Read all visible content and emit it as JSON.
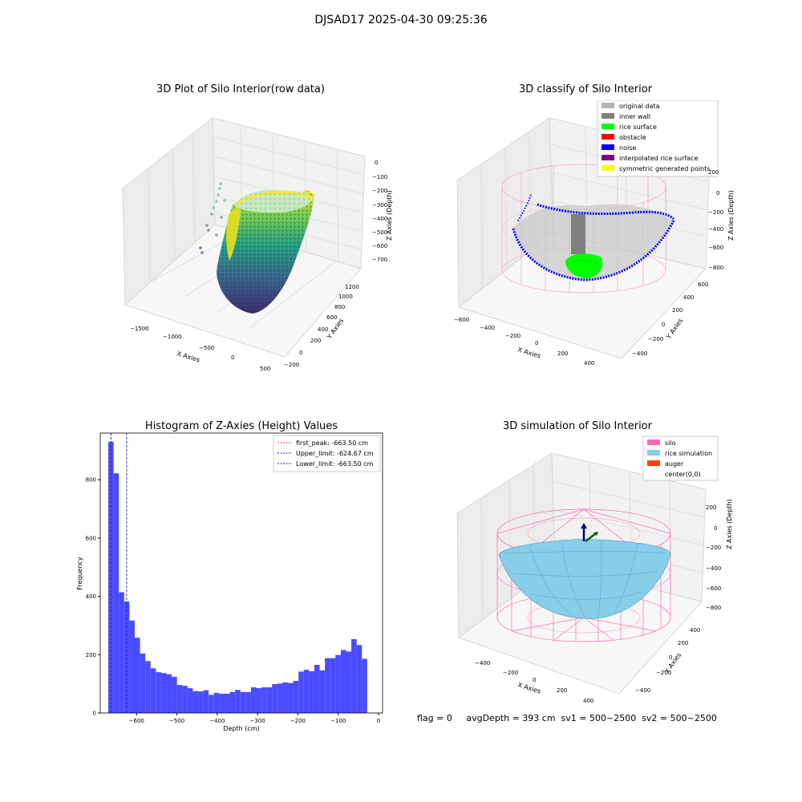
{
  "figure": {
    "suptitle": "DJSAD17 2025-04-30 09:25:36"
  },
  "colors": {
    "histogram": "#4b4bff",
    "first_peak": "#e03030",
    "limits": "#2020cc",
    "silo": "#ff69b4",
    "rice_sim": "#87ceeb",
    "auger": "#ff4500",
    "inner_wall": "#808080",
    "rice_surface": "#00ff00",
    "noise": "#0000ff"
  },
  "chart_data": [
    {
      "type": "scatter",
      "title": "3D Plot of Silo Interior(row data)",
      "xlabel": "X Axies",
      "ylabel": "Y Axies",
      "zlabel": "Z Axies (Depth)",
      "x_ticks": [
        "−1500",
        "−1000",
        "−500",
        "0",
        "500"
      ],
      "y_ticks": [
        "−200",
        "0",
        "200",
        "400",
        "600",
        "800",
        "1000",
        "1200"
      ],
      "z_ticks": [
        "0",
        "−100",
        "−200",
        "−300",
        "−400",
        "−500",
        "−600",
        "−700"
      ],
      "colormap": "viridis"
    },
    {
      "type": "scatter",
      "title": "3D classify of Silo Interior",
      "xlabel": "X Axies",
      "ylabel": "Y Axies",
      "zlabel": "Z Axies (Depth)",
      "x_ticks": [
        "−600",
        "−400",
        "−200",
        "0",
        "200",
        "400"
      ],
      "y_ticks": [
        "−400",
        "−200",
        "0",
        "200",
        "400",
        "600"
      ],
      "z_ticks": [
        "200",
        "0",
        "−200",
        "−400",
        "−600",
        "−800"
      ],
      "legend": [
        {
          "label": "original data",
          "color": "#b4b4b4"
        },
        {
          "label": "inner wall",
          "color": "#808080"
        },
        {
          "label": "rice surface",
          "color": "#00ff00"
        },
        {
          "label": "obstacle",
          "color": "#ff0000"
        },
        {
          "label": "noise",
          "color": "#0000ff"
        },
        {
          "label": "interpolated rice surface",
          "color": "#800080"
        },
        {
          "label": "symmetric generated points",
          "color": "#ffff00"
        }
      ]
    },
    {
      "type": "bar",
      "title": "Histogram of Z-Axies (Height) Values",
      "xlabel": "Depth (cm)",
      "ylabel": "Frequency",
      "xlim": [
        -690,
        10
      ],
      "ylim": [
        0,
        960
      ],
      "x_ticks": [
        -600,
        -500,
        -400,
        -300,
        -200,
        -100,
        0
      ],
      "y_ticks": [
        0,
        200,
        400,
        600,
        800
      ],
      "bin_start": -670,
      "bin_width": 13.1,
      "values": [
        930,
        822,
        414,
        382,
        317,
        258,
        204,
        178,
        153,
        140,
        137,
        133,
        124,
        96,
        93,
        85,
        75,
        74,
        78,
        62,
        69,
        66,
        66,
        72,
        79,
        72,
        72,
        88,
        85,
        88,
        88,
        99,
        101,
        105,
        103,
        110,
        142,
        148,
        143,
        165,
        146,
        188,
        188,
        199,
        216,
        211,
        253,
        233,
        186
      ],
      "vlines": [
        {
          "label": "first_peak: -663.50 cm",
          "x": -663.5,
          "color": "#e03030"
        },
        {
          "label": "Upper_limit: -624.67 cm",
          "x": -624.67,
          "color": "#2020cc"
        },
        {
          "label": "Lower_limit: -663.50 cm",
          "x": -663.5,
          "color": "#2020cc"
        }
      ]
    },
    {
      "type": "area",
      "title": "3D simulation of Silo Interior",
      "xlabel": "X Axies",
      "ylabel": "Y Axies",
      "zlabel": "Z Axies (Depth)",
      "x_ticks": [
        "−400",
        "−200",
        "0",
        "200",
        "400"
      ],
      "y_ticks": [
        "−400",
        "−200",
        "0",
        "200",
        "400"
      ],
      "z_ticks": [
        "200",
        "0",
        "−200",
        "−400",
        "−600",
        "−800"
      ],
      "legend": [
        {
          "label": "silo",
          "color": "#ff69b4"
        },
        {
          "label": "rice simulation",
          "color": "#87ceeb"
        },
        {
          "label": "auger",
          "color": "#ff4500"
        },
        {
          "label": "center(0,0)",
          "color": ""
        }
      ]
    }
  ],
  "footer": {
    "text": "flag = 0     avgDepth = 393 cm  sv1 = 500~2500  sv2 = 500~2500"
  }
}
